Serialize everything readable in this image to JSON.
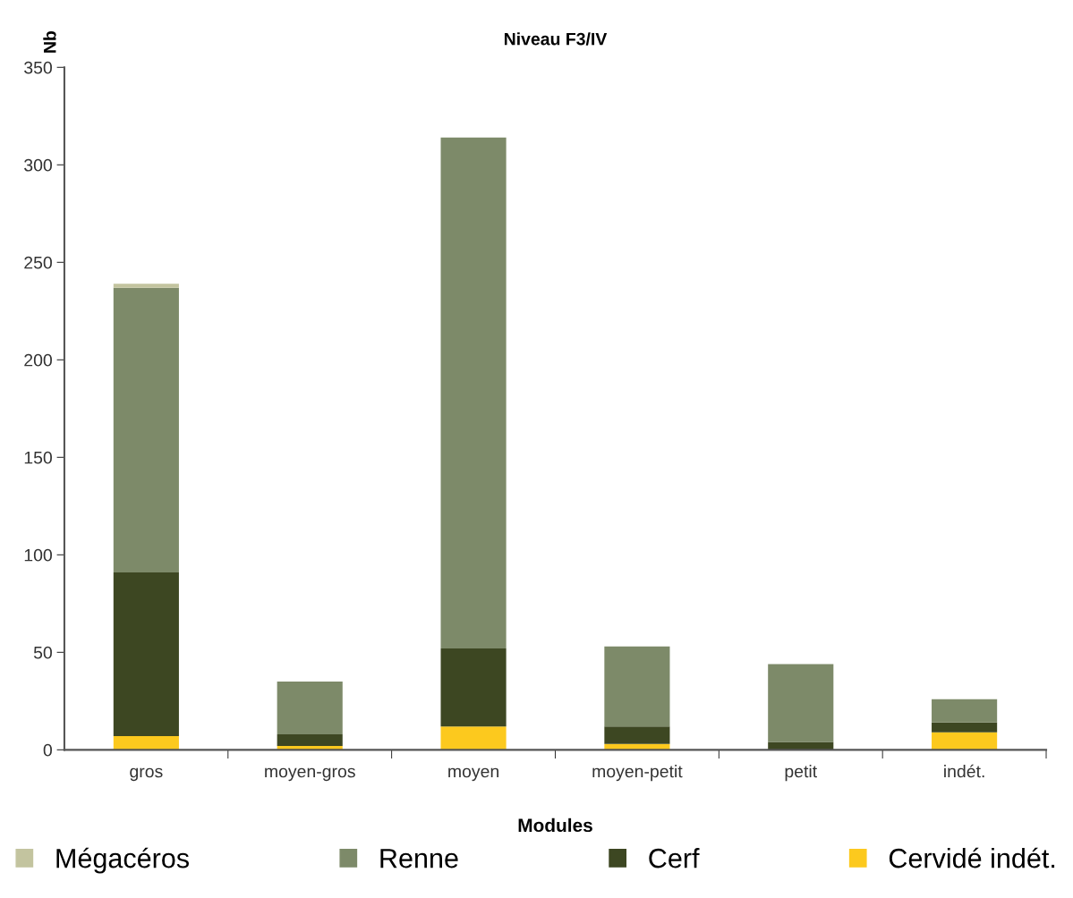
{
  "chart_data": {
    "type": "bar",
    "title": "Niveau F3/IV",
    "xlabel": "Modules",
    "ylabel": "Nb",
    "categories": [
      "gros",
      "moyen-gros",
      "moyen",
      "moyen-petit",
      "petit",
      "indét."
    ],
    "stacked": true,
    "series": [
      {
        "name": "Cervidé indét.",
        "color": "#fcc91e",
        "values": [
          7,
          2,
          12,
          3,
          null,
          9
        ]
      },
      {
        "name": "Cerf",
        "color": "#3d4722",
        "values": [
          84,
          6,
          40,
          9,
          4,
          5
        ]
      },
      {
        "name": "Renne",
        "color": "#7d8a69",
        "values": [
          146,
          27,
          262,
          41,
          40,
          12
        ]
      },
      {
        "name": "Mégacéros",
        "color": "#c3c49f",
        "values": [
          2,
          0,
          0,
          0,
          0,
          0
        ]
      }
    ],
    "ylim": [
      0,
      350
    ],
    "yticks": [
      0,
      50,
      100,
      150,
      200,
      250,
      300,
      350
    ],
    "grid": false,
    "legend": "bottom"
  }
}
